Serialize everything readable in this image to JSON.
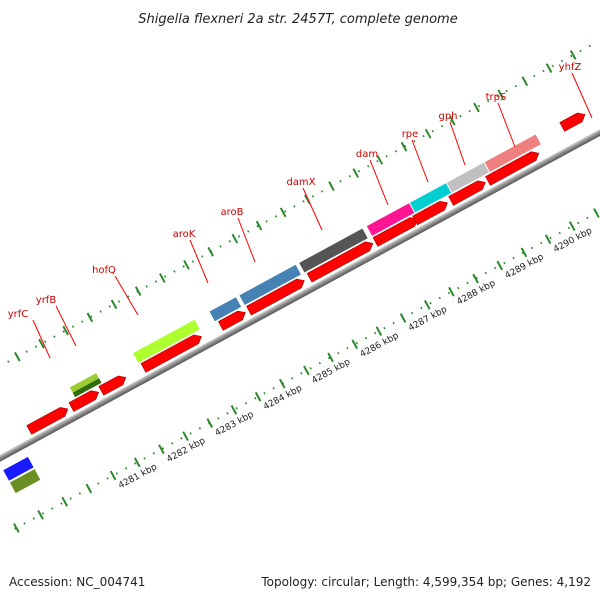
{
  "title": "Shigella flexneri 2a str. 2457T, complete genome",
  "footer": {
    "accession": "Accession: NC_004741",
    "summary": "Topology: circular; Length: 4,599,354 bp; Genes: 4,192"
  },
  "kbp_labels": [
    "4281 kbp",
    "4282 kbp",
    "4283 kbp",
    "4284 kbp",
    "4285 kbp",
    "4286 kbp",
    "4287 kbp",
    "4288 kbp",
    "4289 kbp",
    "4290 kbp"
  ],
  "gene_labels": [
    "yrfC",
    "yrfB",
    "hofQ",
    "aroK",
    "aroB",
    "damX",
    "dam",
    "rpe",
    "gph",
    "trpS",
    "yhfZ"
  ],
  "colors": {
    "cds": "#ff0000",
    "backbone": "#888888",
    "tick": "#2a8a2a",
    "label_line": "#ff0000"
  }
}
